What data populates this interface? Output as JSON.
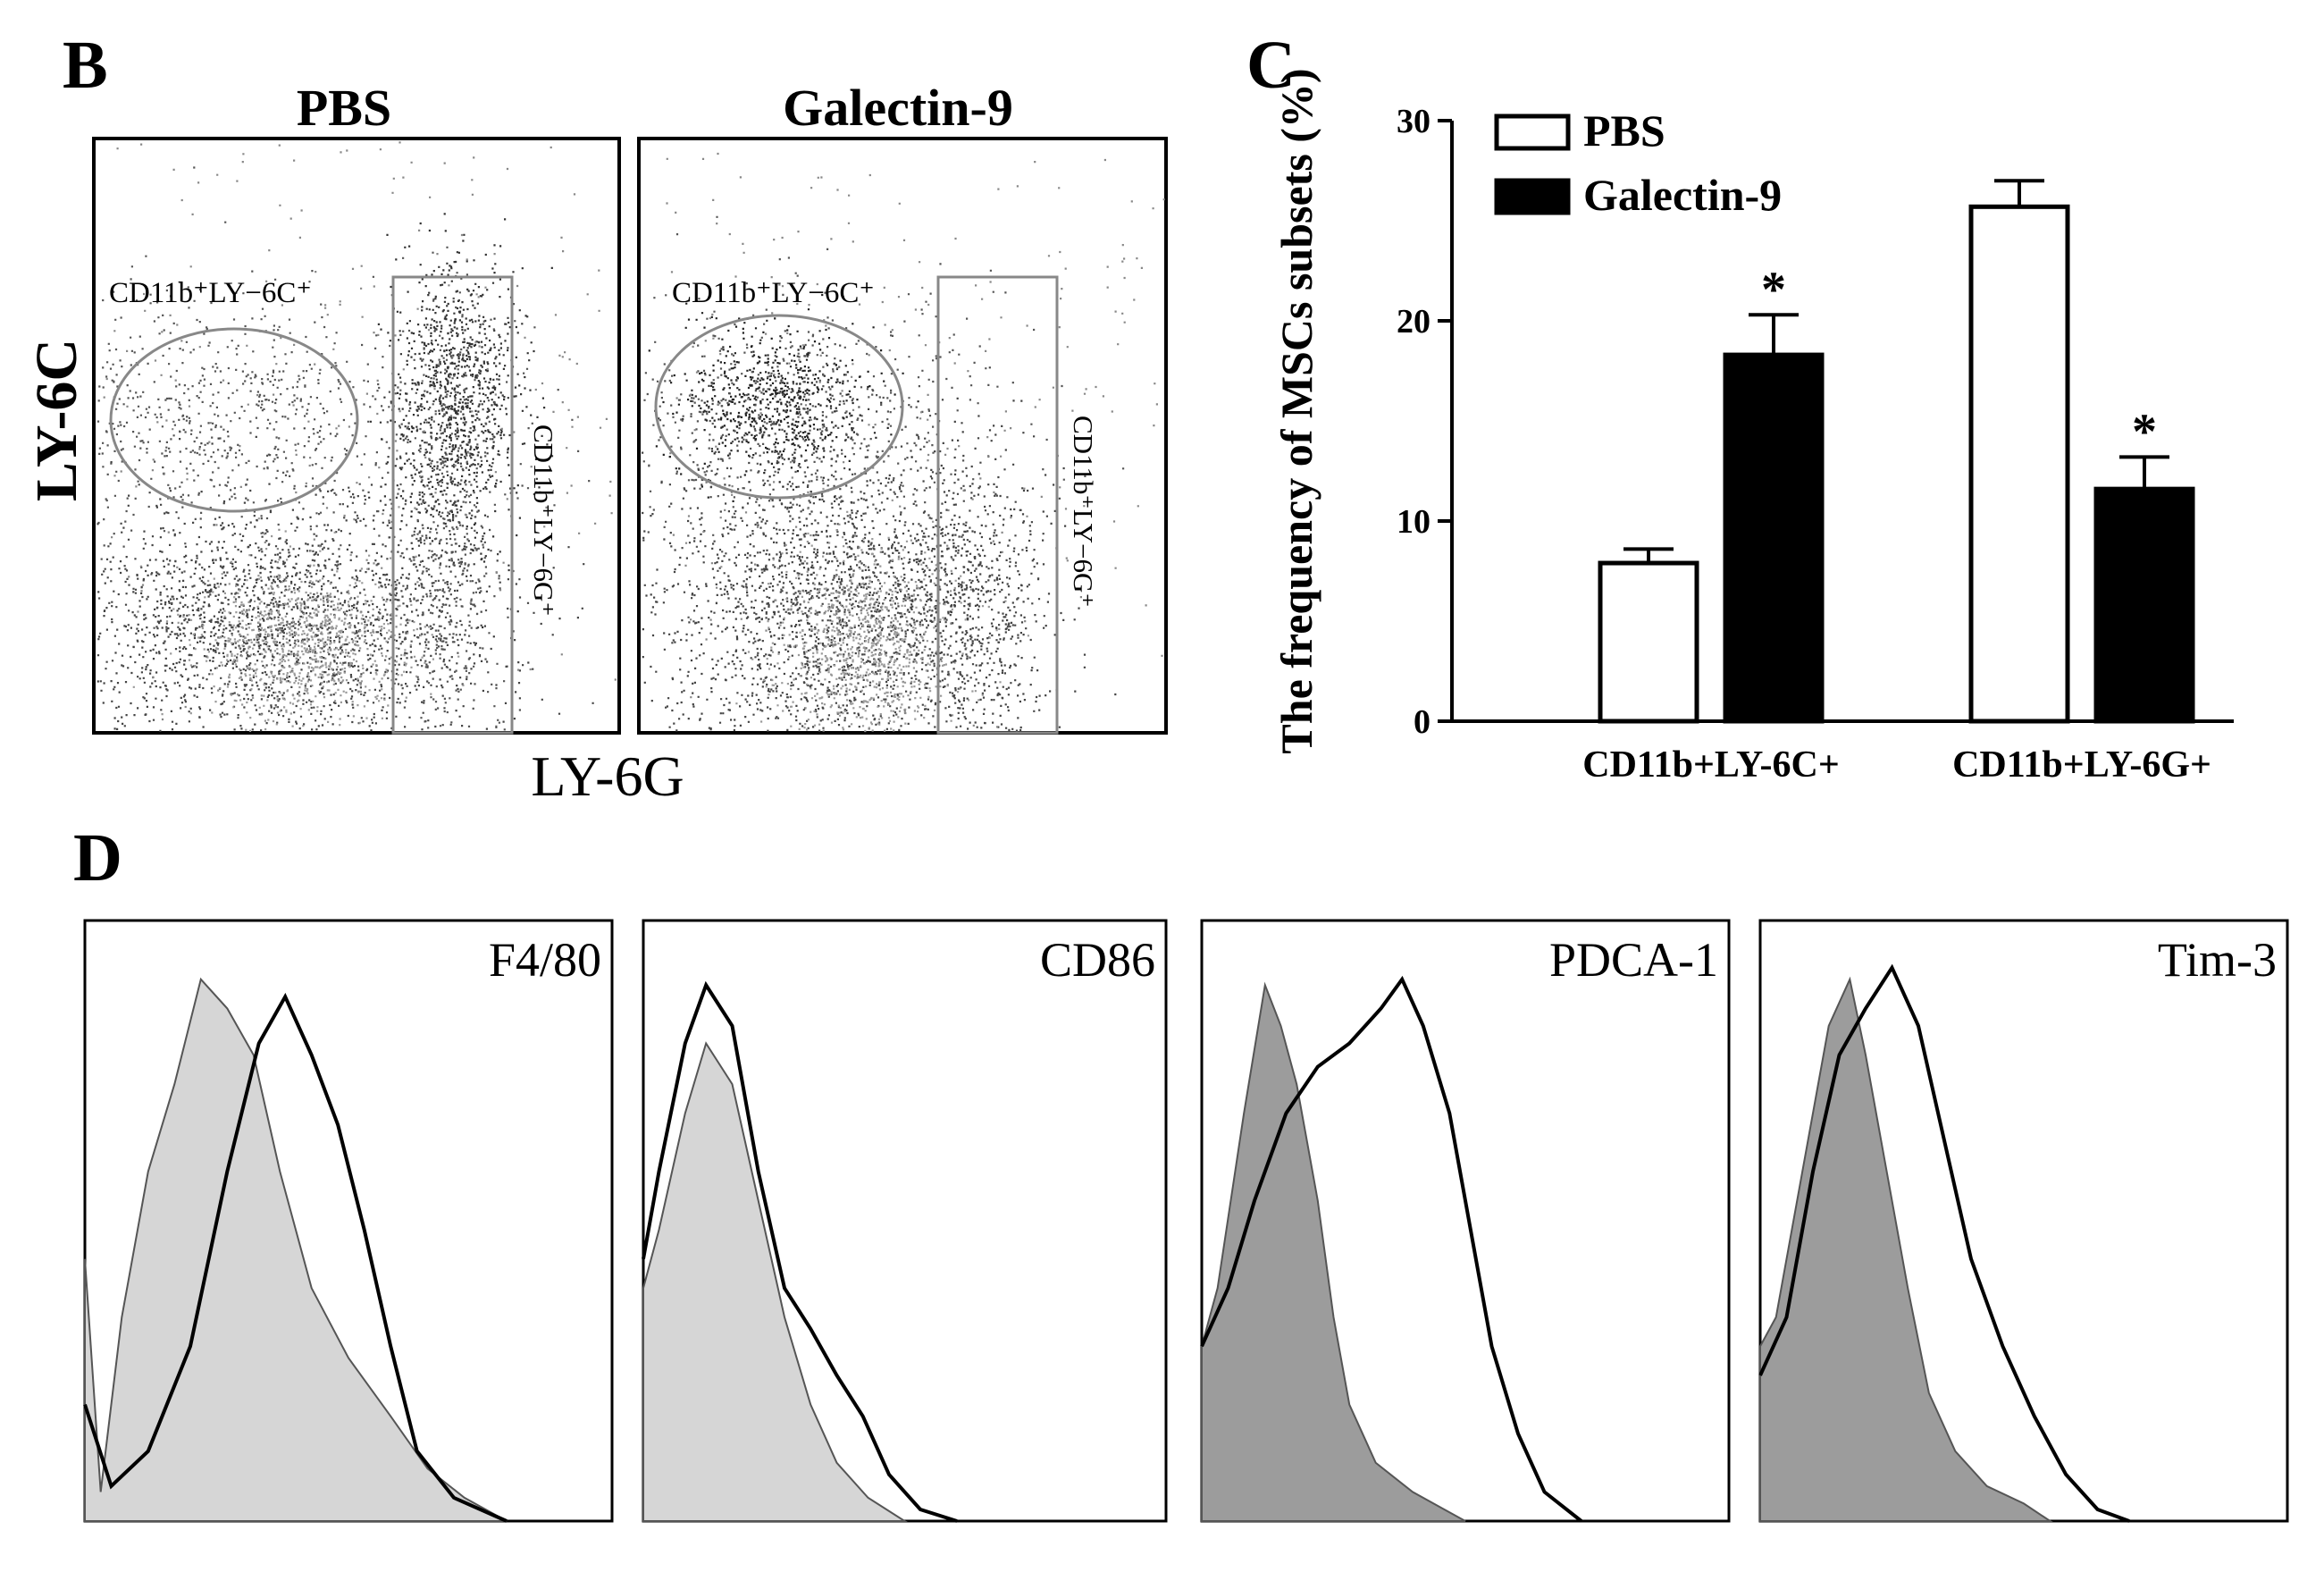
{
  "panels": {
    "B": {
      "letter": "B",
      "x_axis_label": "LY-6G",
      "y_axis_label": "LY-6C",
      "plots": [
        {
          "title": "PBS",
          "gate_ly6c": "CD11b⁺LY−6C⁺",
          "gate_ly6g": "CD11b⁺LY−6G⁺"
        },
        {
          "title": "Galectin-9",
          "gate_ly6c": "CD11b⁺LY−6C⁺",
          "gate_ly6g": "CD11b⁺LY−6G⁺"
        }
      ]
    },
    "C": {
      "letter": "C"
    },
    "D": {
      "letter": "D",
      "histograms": [
        {
          "label": "F4/80",
          "fill_color": "#d6d6d6"
        },
        {
          "label": "CD86",
          "fill_color": "#d6d6d6"
        },
        {
          "label": "PDCA-1",
          "fill_color": "#9c9c9c"
        },
        {
          "label": "Tim-3",
          "fill_color": "#9c9c9c"
        }
      ]
    }
  },
  "chart_data": [
    {
      "type": "bar",
      "categories": [
        "CD11b+LY-6C+",
        "CD11b+LY-6G+"
      ],
      "series": [
        {
          "name": "PBS",
          "values": [
            7.9,
            25.7
          ],
          "errors": [
            0.7,
            1.3
          ],
          "color": "#ffffff",
          "significant": [
            false,
            false
          ]
        },
        {
          "name": "Galectin-9",
          "values": [
            18.3,
            11.6
          ],
          "errors": [
            2.0,
            1.6
          ],
          "color": "#000000",
          "significant": [
            true,
            true
          ]
        }
      ],
      "significance_marker": "*",
      "title": "",
      "xlabel": "",
      "ylabel": "The frequency of MSCs subsets (%)",
      "ylim": [
        0,
        30
      ],
      "yticks": [
        0,
        10,
        20,
        30
      ],
      "legend_position": "top-left",
      "grid": false
    }
  ]
}
